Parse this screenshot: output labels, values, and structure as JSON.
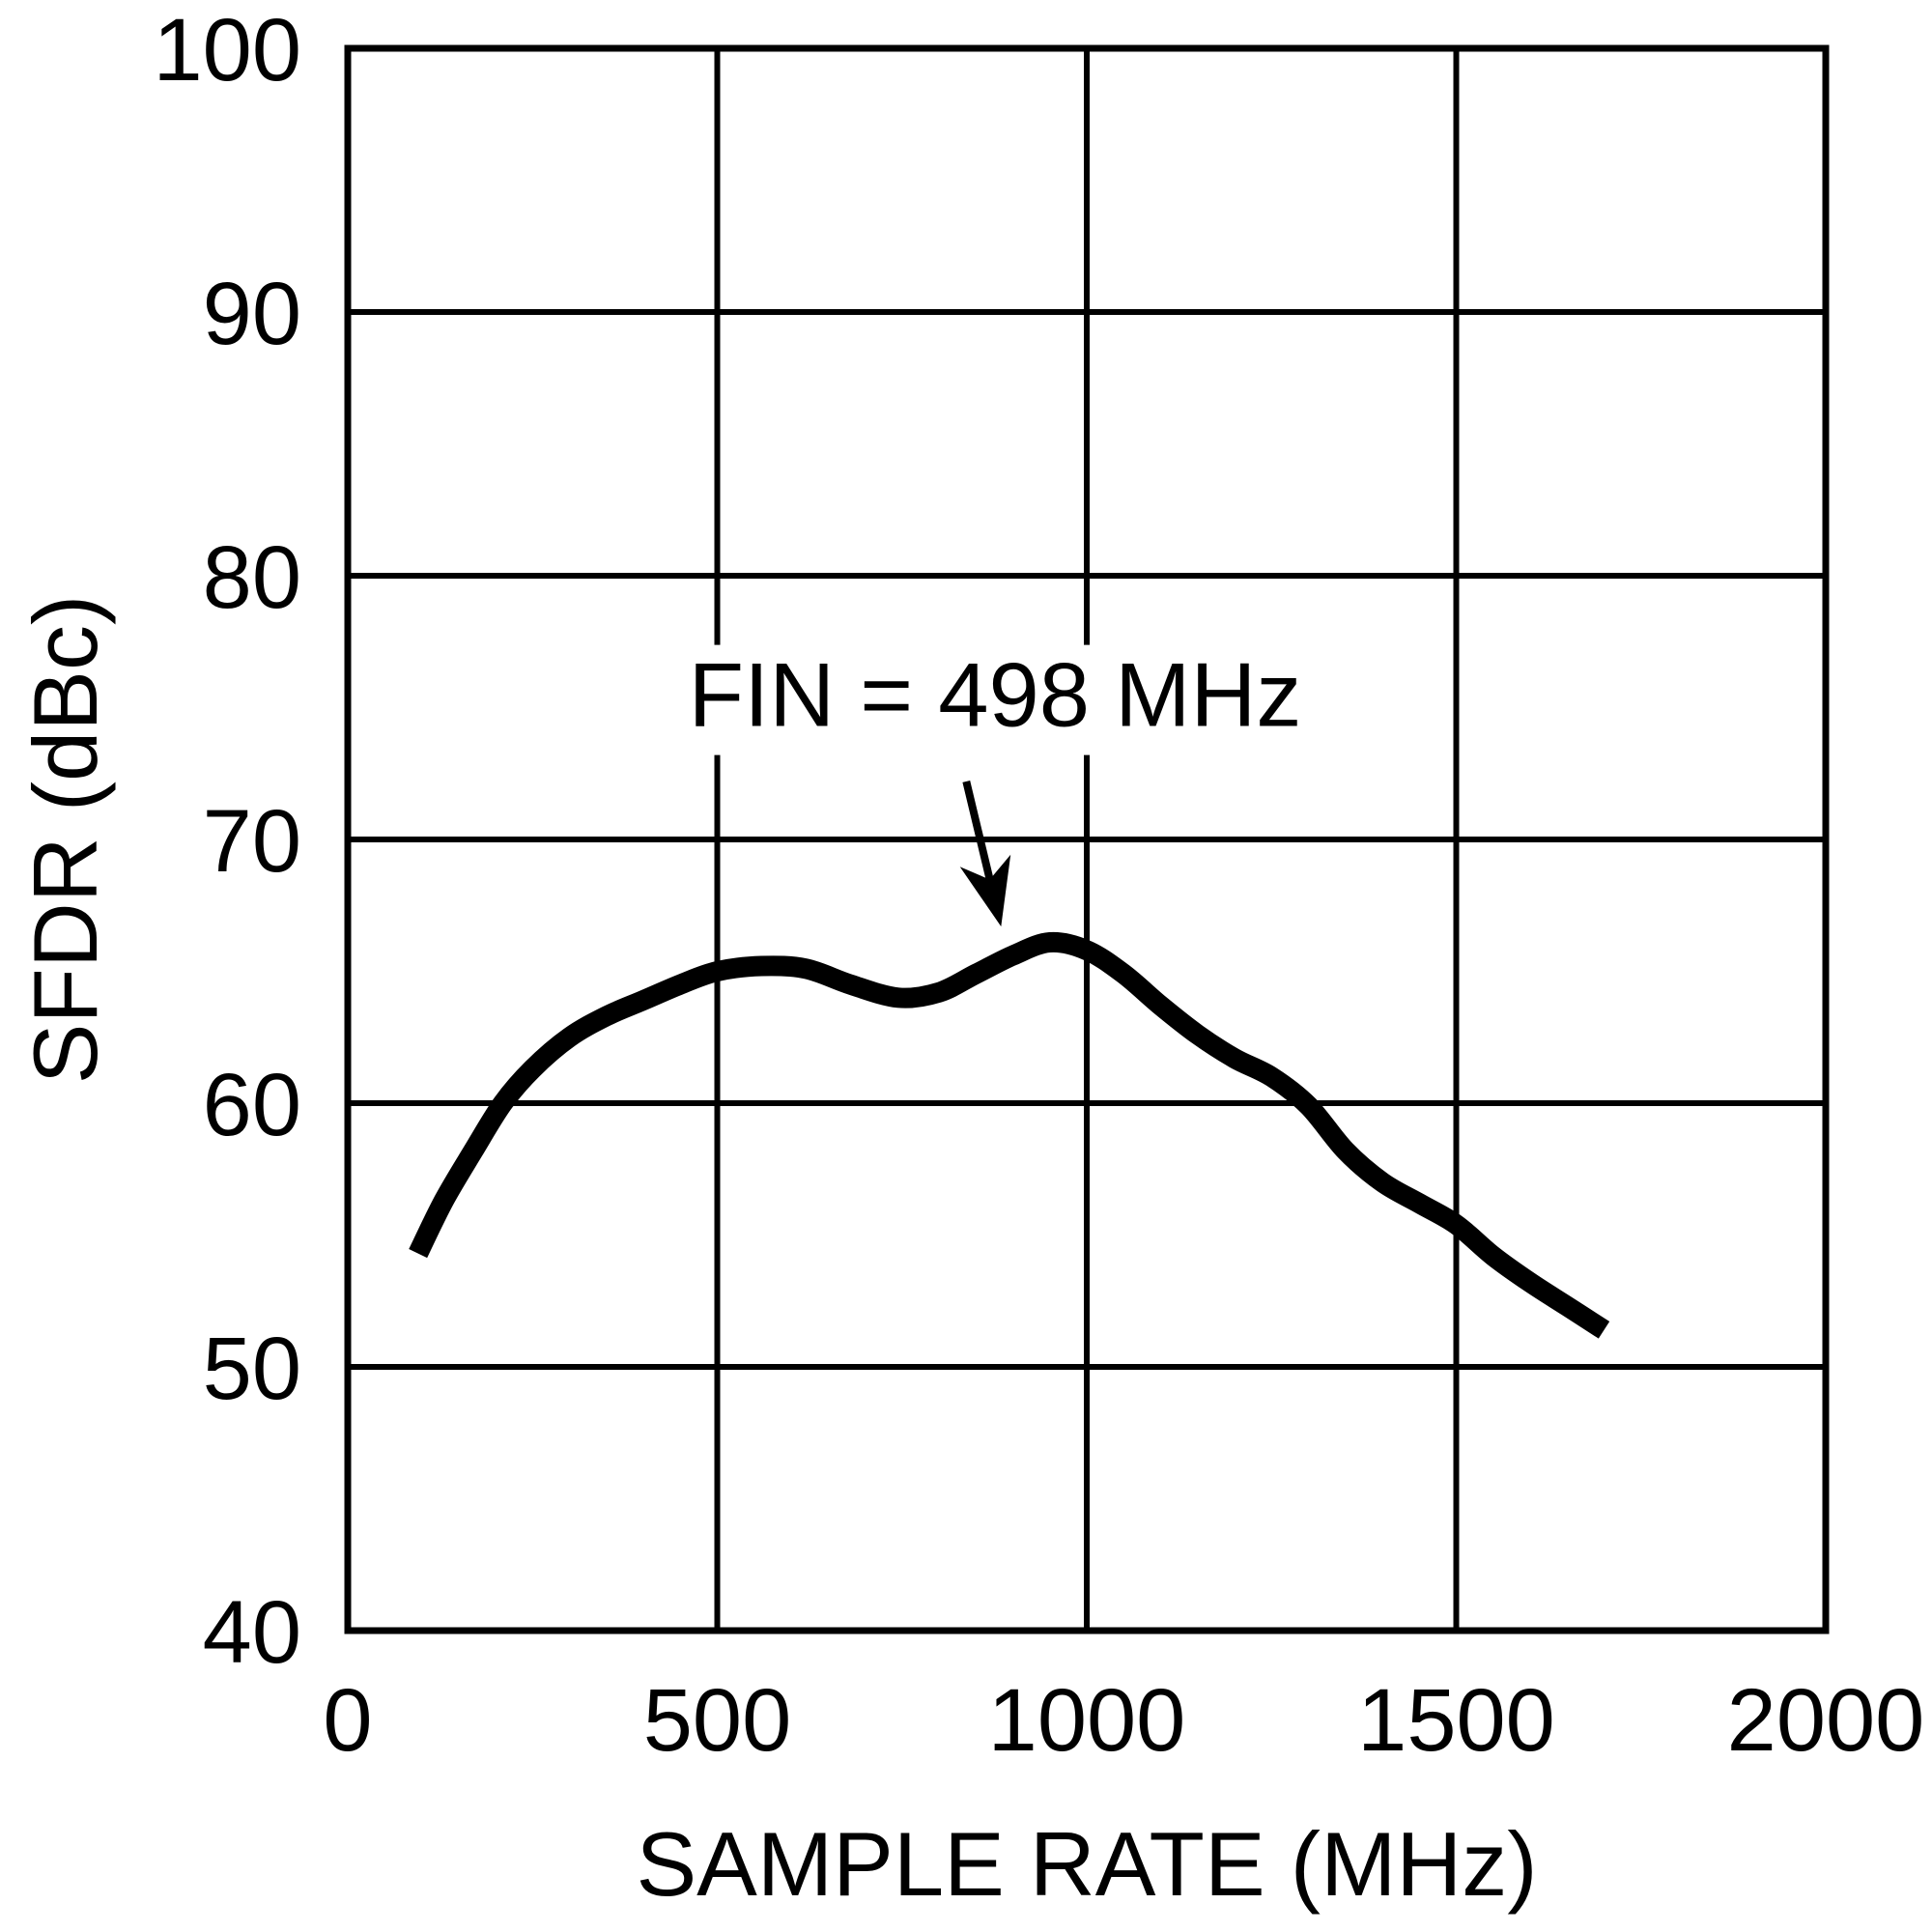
{
  "chart_data": {
    "type": "line",
    "title": "",
    "xlabel": "SAMPLE RATE (MHz)",
    "ylabel": "SFDR (dBc)",
    "x_range": [
      0,
      2000
    ],
    "y_range": [
      40,
      100
    ],
    "x_ticks": [
      0,
      500,
      1000,
      1500,
      2000
    ],
    "y_ticks": [
      40,
      50,
      60,
      70,
      80,
      90,
      100
    ],
    "grid": true,
    "legend": "none",
    "line_color": "#000000",
    "background_color": "#ffffff",
    "series": [
      {
        "name": "SFDR",
        "points": [
          [
            95,
            54.3
          ],
          [
            130,
            56.3
          ],
          [
            170,
            58.2
          ],
          [
            210,
            60.0
          ],
          [
            250,
            61.3
          ],
          [
            300,
            62.5
          ],
          [
            350,
            63.3
          ],
          [
            400,
            63.9
          ],
          [
            450,
            64.5
          ],
          [
            500,
            65.0
          ],
          [
            560,
            65.2
          ],
          [
            620,
            65.1
          ],
          [
            680,
            64.5
          ],
          [
            745,
            64.0
          ],
          [
            800,
            64.2
          ],
          [
            850,
            64.9
          ],
          [
            900,
            65.6
          ],
          [
            950,
            66.1
          ],
          [
            1000,
            65.8
          ],
          [
            1050,
            64.9
          ],
          [
            1100,
            63.7
          ],
          [
            1150,
            62.6
          ],
          [
            1200,
            61.7
          ],
          [
            1250,
            61.0
          ],
          [
            1300,
            59.9
          ],
          [
            1350,
            58.2
          ],
          [
            1400,
            57.0
          ],
          [
            1450,
            56.2
          ],
          [
            1500,
            55.4
          ],
          [
            1550,
            54.2
          ],
          [
            1600,
            53.2
          ],
          [
            1650,
            52.3
          ],
          [
            1700,
            51.4
          ]
        ]
      }
    ],
    "annotation": {
      "text": "FIN = 498 MHz",
      "text_anchor_xy": [
        461,
        74.3
      ],
      "arrow_start_xy": [
        837,
        72.2
      ],
      "arrow_end_xy": [
        884,
        66.7
      ]
    }
  }
}
